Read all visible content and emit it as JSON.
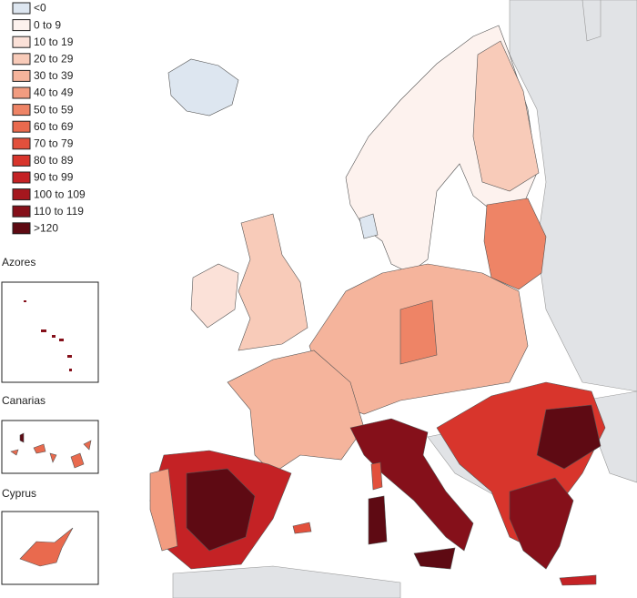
{
  "legend": {
    "items": [
      {
        "label": "<0",
        "color": "#dde6f0"
      },
      {
        "label": "0 to 9",
        "color": "#fdf2ee"
      },
      {
        "label": "10 to 19",
        "color": "#fbe1d8"
      },
      {
        "label": "20 to 29",
        "color": "#f8cbb9"
      },
      {
        "label": "30 to 39",
        "color": "#f5b49c"
      },
      {
        "label": "40 to 49",
        "color": "#f29c80"
      },
      {
        "label": "50 to 59",
        "color": "#ee8466"
      },
      {
        "label": "60 to 69",
        "color": "#e96a4e"
      },
      {
        "label": "70 to 79",
        "color": "#e2503c"
      },
      {
        "label": "80 to 89",
        "color": "#d8352c"
      },
      {
        "label": "90 to 99",
        "color": "#c42225"
      },
      {
        "label": "100 to 109",
        "color": "#a5171e"
      },
      {
        "label": "110 to 119",
        "color": "#85101a"
      },
      {
        "label": ">120",
        "color": "#5e0a13"
      }
    ]
  },
  "insets": [
    {
      "label": "Azores"
    },
    {
      "label": "Canarias"
    },
    {
      "label": "Cyprus"
    }
  ]
}
